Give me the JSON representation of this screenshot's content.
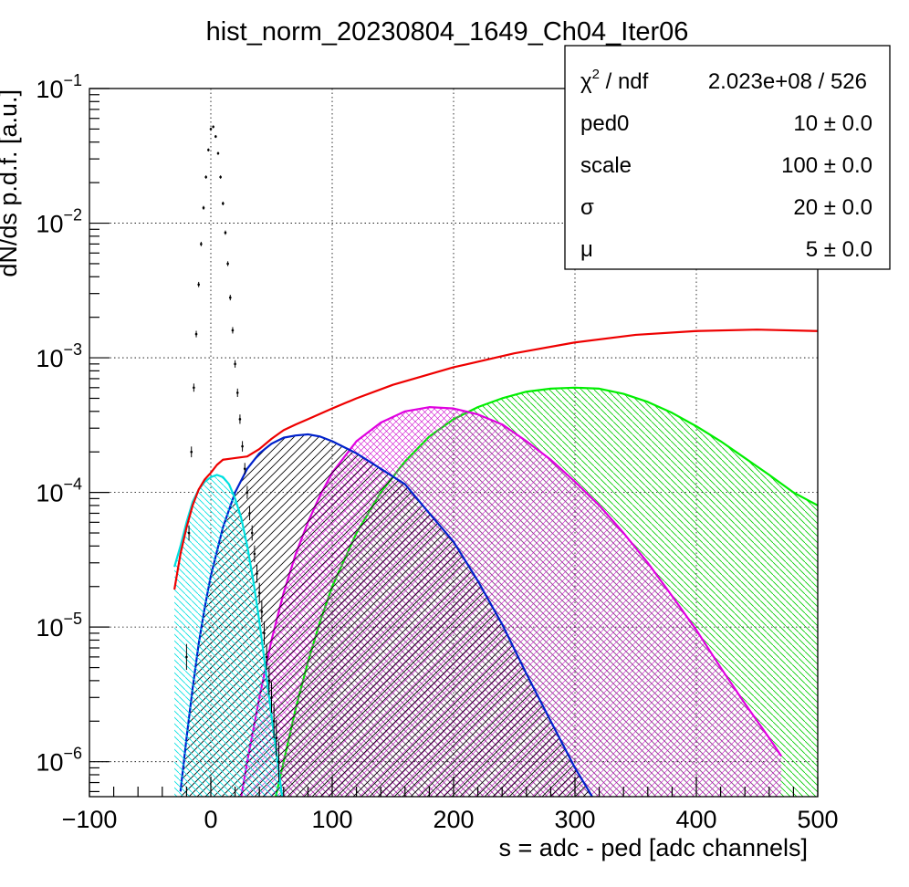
{
  "chart_data": {
    "type": "line",
    "title": "hist_norm_20230804_1649_Ch04_Iter06",
    "xlabel": "s = adc - ped [adc channels]",
    "ylabel": "dN/ds p.d.f. [a.u.]",
    "xlim": [
      -100,
      500
    ],
    "ylim": [
      5.5e-07,
      0.1
    ],
    "yscale": "log",
    "grid": true,
    "x_ticks": [
      "−100",
      "0",
      "100",
      "200",
      "300",
      "400",
      "500"
    ],
    "y_ticks": [
      {
        "base": "10",
        "exp": "−1"
      },
      {
        "base": "10",
        "exp": "−2"
      },
      {
        "base": "10",
        "exp": "−3"
      },
      {
        "base": "10",
        "exp": "−4"
      },
      {
        "base": "10",
        "exp": "−5"
      },
      {
        "base": "10",
        "exp": "−6"
      }
    ],
    "histogram": {
      "points": [
        [
          -20,
          6e-06
        ],
        [
          -18,
          5e-05
        ],
        [
          -16,
          0.0002
        ],
        [
          -14,
          0.0006
        ],
        [
          -12,
          0.0015
        ],
        [
          -10,
          0.0035
        ],
        [
          -8,
          0.007
        ],
        [
          -6,
          0.013
        ],
        [
          -4,
          0.022
        ],
        [
          -2,
          0.035
        ],
        [
          0,
          0.05
        ],
        [
          2,
          0.052
        ],
        [
          4,
          0.044
        ],
        [
          6,
          0.033
        ],
        [
          8,
          0.022
        ],
        [
          10,
          0.014
        ],
        [
          12,
          0.0085
        ],
        [
          14,
          0.005
        ],
        [
          16,
          0.0028
        ],
        [
          18,
          0.0016
        ],
        [
          20,
          0.0009
        ],
        [
          22,
          0.00055
        ],
        [
          24,
          0.00035
        ],
        [
          26,
          0.00022
        ],
        [
          28,
          0.00015
        ],
        [
          30,
          0.0001
        ],
        [
          32,
          7e-05
        ],
        [
          34,
          5e-05
        ],
        [
          36,
          3.5e-05
        ],
        [
          38,
          2.5e-05
        ],
        [
          40,
          1.8e-05
        ],
        [
          42,
          1.3e-05
        ],
        [
          44,
          9e-06
        ],
        [
          46,
          6e-06
        ],
        [
          48,
          4e-06
        ],
        [
          50,
          3e-06
        ],
        [
          52,
          2e-06
        ],
        [
          54,
          1.5e-06
        ],
        [
          56,
          1e-06
        ]
      ]
    },
    "series": [
      {
        "color": "#ee0000",
        "fill": false,
        "points": [
          [
            -30,
            1.9e-05
          ],
          [
            -25,
            3.5e-05
          ],
          [
            -20,
            5.5e-05
          ],
          [
            -15,
            8e-05
          ],
          [
            -10,
            0.000105
          ],
          [
            -5,
            0.000125
          ],
          [
            0,
            0.00014
          ],
          [
            5,
            0.00016
          ],
          [
            10,
            0.000175
          ],
          [
            20,
            0.00018
          ],
          [
            30,
            0.000185
          ],
          [
            40,
            0.00021
          ],
          [
            50,
            0.00025
          ],
          [
            60,
            0.00029
          ],
          [
            70,
            0.00032
          ],
          [
            80,
            0.00035
          ],
          [
            100,
            0.00042
          ],
          [
            120,
            0.0005
          ],
          [
            150,
            0.00063
          ],
          [
            200,
            0.00085
          ],
          [
            250,
            0.00108
          ],
          [
            300,
            0.0013
          ],
          [
            350,
            0.00148
          ],
          [
            400,
            0.00158
          ],
          [
            450,
            0.00162
          ],
          [
            500,
            0.00158
          ]
        ]
      },
      {
        "color": "#00e0e0",
        "fill": true,
        "hatch": "back",
        "points": [
          [
            -30,
            2.8e-05
          ],
          [
            -25,
            4e-05
          ],
          [
            -20,
            6e-05
          ],
          [
            -15,
            8.5e-05
          ],
          [
            -10,
            0.000105
          ],
          [
            -5,
            0.00012
          ],
          [
            0,
            0.00013
          ],
          [
            5,
            0.000135
          ],
          [
            10,
            0.00013
          ],
          [
            15,
            0.000115
          ],
          [
            20,
            9e-05
          ],
          [
            25,
            6.5e-05
          ],
          [
            30,
            4e-05
          ],
          [
            35,
            2.2e-05
          ],
          [
            40,
            1.1e-05
          ],
          [
            45,
            5e-06
          ],
          [
            50,
            2.2e-06
          ],
          [
            55,
            1e-06
          ],
          [
            60,
            4.5e-07
          ]
        ]
      },
      {
        "color": "#0022cc",
        "fill": true,
        "hatch": "forward",
        "points": [
          [
            -25,
            6e-07
          ],
          [
            -20,
            1.5e-06
          ],
          [
            -15,
            3.5e-06
          ],
          [
            -10,
            7.5e-06
          ],
          [
            -5,
            1.4e-05
          ],
          [
            0,
            2.4e-05
          ],
          [
            10,
            5.5e-05
          ],
          [
            20,
            0.0001
          ],
          [
            30,
            0.00015
          ],
          [
            40,
            0.000195
          ],
          [
            50,
            0.00023
          ],
          [
            60,
            0.000255
          ],
          [
            70,
            0.000265
          ],
          [
            80,
            0.00027
          ],
          [
            90,
            0.00026
          ],
          [
            100,
            0.00024
          ],
          [
            120,
            0.000195
          ],
          [
            140,
            0.00015
          ],
          [
            160,
            0.000115
          ],
          [
            180,
            7e-05
          ],
          [
            200,
            4.3e-05
          ],
          [
            220,
            2.2e-05
          ],
          [
            240,
            1.05e-05
          ],
          [
            260,
            4.5e-06
          ],
          [
            280,
            2e-06
          ],
          [
            300,
            9e-07
          ],
          [
            320,
            4.5e-07
          ]
        ]
      },
      {
        "color": "#e000e0",
        "fill": true,
        "hatch": "cross",
        "points": [
          [
            20,
            3e-07
          ],
          [
            30,
            1e-06
          ],
          [
            40,
            3e-06
          ],
          [
            50,
            8e-06
          ],
          [
            60,
            1.8e-05
          ],
          [
            70,
            3.5e-05
          ],
          [
            80,
            6e-05
          ],
          [
            90,
            9.5e-05
          ],
          [
            100,
            0.00014
          ],
          [
            120,
            0.00024
          ],
          [
            140,
            0.00033
          ],
          [
            160,
            0.0004
          ],
          [
            180,
            0.00043
          ],
          [
            200,
            0.00042
          ],
          [
            220,
            0.00038
          ],
          [
            240,
            0.00032
          ],
          [
            260,
            0.00024
          ],
          [
            280,
            0.000175
          ],
          [
            300,
            0.00012
          ],
          [
            320,
            8e-05
          ],
          [
            340,
            5e-05
          ],
          [
            360,
            3e-05
          ],
          [
            380,
            1.7e-05
          ],
          [
            400,
            9.5e-06
          ],
          [
            420,
            5e-06
          ],
          [
            440,
            2.7e-06
          ],
          [
            460,
            1.5e-06
          ],
          [
            470,
            1.1e-06
          ]
        ]
      },
      {
        "color": "#00ee00",
        "fill": true,
        "hatch": "back",
        "points": [
          [
            50,
            4e-07
          ],
          [
            60,
            1e-06
          ],
          [
            70,
            2.5e-06
          ],
          [
            80,
            5.5e-06
          ],
          [
            90,
            1.1e-05
          ],
          [
            100,
            2e-05
          ],
          [
            120,
            5e-05
          ],
          [
            140,
            0.0001
          ],
          [
            160,
            0.00017
          ],
          [
            180,
            0.00026
          ],
          [
            200,
            0.00035
          ],
          [
            220,
            0.00043
          ],
          [
            240,
            0.0005
          ],
          [
            260,
            0.00056
          ],
          [
            280,
            0.00059
          ],
          [
            300,
            0.0006
          ],
          [
            320,
            0.00059
          ],
          [
            340,
            0.00054
          ],
          [
            360,
            0.00047
          ],
          [
            380,
            0.00039
          ],
          [
            400,
            0.00031
          ],
          [
            420,
            0.00024
          ],
          [
            440,
            0.00018
          ],
          [
            460,
            0.000135
          ],
          [
            480,
            0.0001
          ],
          [
            500,
            8e-05
          ]
        ]
      }
    ]
  },
  "stats": {
    "rows": [
      {
        "label": "χ",
        "sup": "2",
        "label_rest": " / ndf",
        "value": "2.023e+08 / 526"
      },
      {
        "label": "ped0",
        "value": "10 ± 0.0"
      },
      {
        "label": "scale",
        "value": "100 ± 0.0"
      },
      {
        "label": "σ",
        "value": "20 ± 0.0"
      },
      {
        "label": "μ",
        "value": "5 ± 0.0"
      }
    ]
  }
}
